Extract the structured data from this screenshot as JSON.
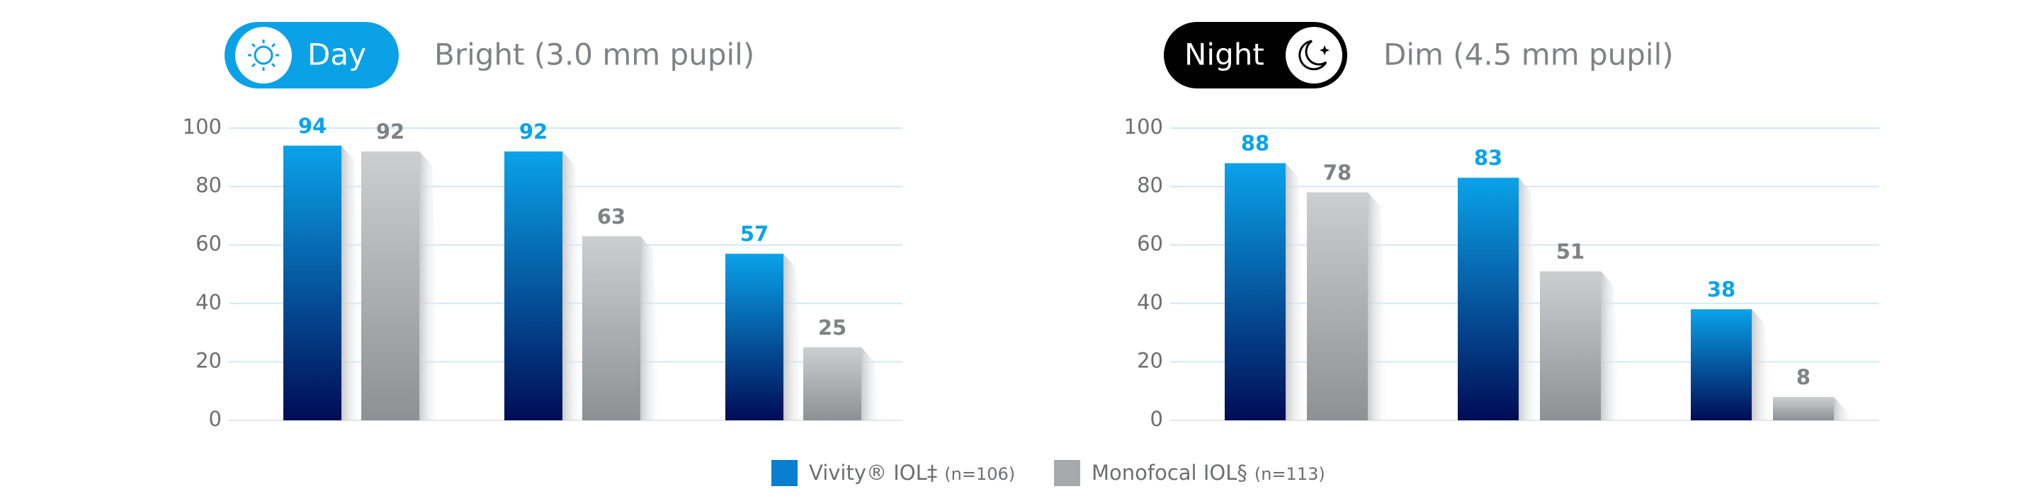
{
  "chart_data": [
    {
      "type": "bar",
      "badge": "Day",
      "subtitle": "Bright (3.0 mm pupil)",
      "categories": [
        null,
        null,
        null
      ],
      "series": [
        {
          "color": "#0aa3ea",
          "values": [
            94,
            92,
            57
          ]
        },
        {
          "color": "#8a8c8f",
          "values": [
            92,
            63,
            25
          ]
        }
      ],
      "ylim": [
        0,
        100
      ],
      "yticks": [
        0,
        20,
        40,
        60,
        80,
        100
      ],
      "grid": true
    },
    {
      "type": "bar",
      "badge": "Night",
      "subtitle": "Dim (4.5 mm pupil)",
      "categories": [
        null,
        null,
        null
      ],
      "series": [
        {
          "color": "#0aa3ea",
          "values": [
            88,
            83,
            38
          ]
        },
        {
          "color": "#8a8c8f",
          "values": [
            78,
            51,
            8
          ]
        }
      ],
      "ylim": [
        0,
        100
      ],
      "yticks": [
        0,
        20,
        40,
        60,
        80,
        100
      ],
      "grid": true
    }
  ],
  "legend": [
    {
      "name": "Vivity® IOL‡",
      "note": "(n=106)",
      "color": "#0a7fd0"
    },
    {
      "name": "Monofocal IOL§",
      "note": "(n=113)",
      "color": "#a7a9ac"
    }
  ]
}
